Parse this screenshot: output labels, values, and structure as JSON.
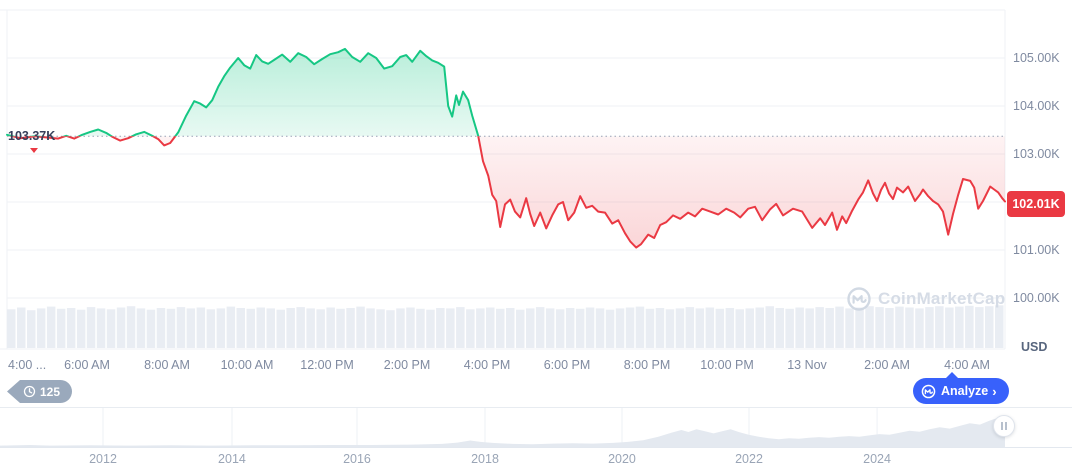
{
  "price_flags": {
    "baseline_label": "103.37K",
    "last_price_label": "102.01K"
  },
  "y_axis": {
    "unit": "USD",
    "ticks": [
      {
        "label": "105.00K",
        "v": 105
      },
      {
        "label": "104.00K",
        "v": 104
      },
      {
        "label": "103.00K",
        "v": 103
      },
      {
        "label": "101.00K",
        "v": 101
      },
      {
        "label": "100.00K",
        "v": 100
      }
    ]
  },
  "x_axis": {
    "ticks": [
      {
        "label": "4:00 ...",
        "t": 0
      },
      {
        "label": "6:00 AM",
        "t": 2
      },
      {
        "label": "8:00 AM",
        "t": 4
      },
      {
        "label": "10:00 AM",
        "t": 6
      },
      {
        "label": "12:00 PM",
        "t": 8
      },
      {
        "label": "2:00 PM",
        "t": 10
      },
      {
        "label": "4:00 PM",
        "t": 12
      },
      {
        "label": "6:00 PM",
        "t": 14
      },
      {
        "label": "8:00 PM",
        "t": 16
      },
      {
        "label": "10:00 PM",
        "t": 18
      },
      {
        "label": "13 Nov",
        "t": 20
      },
      {
        "label": "2:00 AM",
        "t": 22
      },
      {
        "label": "4:00 AM",
        "t": 24
      }
    ]
  },
  "toolbar": {
    "history_count": "125",
    "analyze_label": "Analyze",
    "analyze_chevron": "›"
  },
  "watermark": {
    "text": "CoinMarketCap"
  },
  "navigator": {
    "years": [
      {
        "label": "2012",
        "f": 0.1025
      },
      {
        "label": "2014",
        "f": 0.2308
      },
      {
        "label": "2016",
        "f": 0.3552
      },
      {
        "label": "2018",
        "f": 0.4826
      },
      {
        "label": "2020",
        "f": 0.6189
      },
      {
        "label": "2022",
        "f": 0.7453
      },
      {
        "label": "2024",
        "f": 0.8727
      }
    ]
  },
  "colors": {
    "green": "#16C784",
    "red": "#EA3943",
    "blue": "#3861FB",
    "grid": "#EFF2F5",
    "baseline_dots": "#98A2B6",
    "volume": "#E9EDF3",
    "nav_area": "#E4E9F0",
    "nav_grid": "#EEF1F6",
    "watermark": "#CDD5E1"
  },
  "chart_data": [
    {
      "type": "line",
      "title": "BTC/USD intraday price (12–13 Nov)",
      "x_unit": "hours from 04:00 AM 12 Nov",
      "y_unit": "USD (thousands)",
      "baseline": 103.37,
      "last_price": 102.01,
      "ylim": [
        99.9,
        106.2
      ],
      "y_gridlines": [
        100,
        101,
        102,
        103,
        104,
        105,
        106
      ],
      "points": [
        [
          0,
          103.4
        ],
        [
          0.33,
          103.33
        ],
        [
          0.7,
          103.37
        ],
        [
          1.28,
          103.32
        ],
        [
          1.48,
          103.38
        ],
        [
          1.68,
          103.32
        ],
        [
          1.88,
          103.4
        ],
        [
          2.08,
          103.46
        ],
        [
          2.28,
          103.51
        ],
        [
          2.48,
          103.44
        ],
        [
          2.63,
          103.36
        ],
        [
          2.83,
          103.28
        ],
        [
          3.03,
          103.33
        ],
        [
          3.23,
          103.41
        ],
        [
          3.43,
          103.46
        ],
        [
          3.63,
          103.38
        ],
        [
          3.78,
          103.31
        ],
        [
          3.93,
          103.18
        ],
        [
          4.08,
          103.23
        ],
        [
          4.28,
          103.45
        ],
        [
          4.48,
          103.8
        ],
        [
          4.68,
          104.1
        ],
        [
          4.83,
          104.05
        ],
        [
          4.98,
          103.97
        ],
        [
          5.13,
          104.12
        ],
        [
          5.28,
          104.4
        ],
        [
          5.43,
          104.62
        ],
        [
          5.58,
          104.8
        ],
        [
          5.78,
          105.0
        ],
        [
          5.93,
          104.85
        ],
        [
          6.08,
          104.78
        ],
        [
          6.23,
          105.06
        ],
        [
          6.38,
          104.93
        ],
        [
          6.53,
          104.88
        ],
        [
          6.68,
          104.96
        ],
        [
          6.88,
          105.07
        ],
        [
          7.08,
          104.92
        ],
        [
          7.28,
          105.1
        ],
        [
          7.48,
          105.02
        ],
        [
          7.68,
          104.87
        ],
        [
          7.88,
          104.98
        ],
        [
          8.08,
          105.08
        ],
        [
          8.28,
          105.12
        ],
        [
          8.45,
          105.19
        ],
        [
          8.63,
          105.02
        ],
        [
          8.83,
          104.92
        ],
        [
          9.03,
          105.1
        ],
        [
          9.23,
          105.0
        ],
        [
          9.43,
          104.78
        ],
        [
          9.63,
          104.83
        ],
        [
          9.83,
          105.02
        ],
        [
          9.98,
          105.06
        ],
        [
          10.13,
          104.92
        ],
        [
          10.33,
          105.15
        ],
        [
          10.48,
          105.04
        ],
        [
          10.63,
          104.95
        ],
        [
          10.78,
          104.9
        ],
        [
          10.93,
          104.82
        ],
        [
          11.03,
          104.0
        ],
        [
          11.13,
          103.78
        ],
        [
          11.23,
          104.22
        ],
        [
          11.3,
          104.02
        ],
        [
          11.4,
          104.3
        ],
        [
          11.53,
          104.12
        ],
        [
          11.63,
          103.8
        ],
        [
          11.78,
          103.38
        ],
        [
          11.9,
          102.85
        ],
        [
          12.03,
          102.55
        ],
        [
          12.13,
          102.15
        ],
        [
          12.23,
          102.02
        ],
        [
          12.33,
          101.48
        ],
        [
          12.45,
          101.95
        ],
        [
          12.58,
          102.05
        ],
        [
          12.7,
          101.8
        ],
        [
          12.83,
          101.68
        ],
        [
          12.98,
          102.08
        ],
        [
          13.08,
          101.75
        ],
        [
          13.18,
          101.5
        ],
        [
          13.33,
          101.78
        ],
        [
          13.48,
          101.45
        ],
        [
          13.63,
          101.72
        ],
        [
          13.78,
          101.95
        ],
        [
          13.9,
          102.0
        ],
        [
          14.03,
          101.62
        ],
        [
          14.18,
          101.78
        ],
        [
          14.33,
          102.12
        ],
        [
          14.48,
          101.88
        ],
        [
          14.63,
          101.92
        ],
        [
          14.78,
          101.8
        ],
        [
          14.95,
          101.78
        ],
        [
          15.13,
          101.55
        ],
        [
          15.28,
          101.62
        ],
        [
          15.45,
          101.35
        ],
        [
          15.58,
          101.18
        ],
        [
          15.73,
          101.05
        ],
        [
          15.85,
          101.12
        ],
        [
          16.03,
          101.32
        ],
        [
          16.18,
          101.25
        ],
        [
          16.33,
          101.52
        ],
        [
          16.48,
          101.58
        ],
        [
          16.65,
          101.72
        ],
        [
          16.83,
          101.65
        ],
        [
          17.03,
          101.78
        ],
        [
          17.2,
          101.7
        ],
        [
          17.38,
          101.86
        ],
        [
          17.58,
          101.8
        ],
        [
          17.78,
          101.74
        ],
        [
          17.98,
          101.86
        ],
        [
          18.18,
          101.78
        ],
        [
          18.33,
          101.68
        ],
        [
          18.53,
          101.86
        ],
        [
          18.7,
          101.9
        ],
        [
          18.88,
          101.62
        ],
        [
          19.08,
          101.85
        ],
        [
          19.23,
          101.96
        ],
        [
          19.4,
          101.72
        ],
        [
          19.65,
          101.86
        ],
        [
          19.88,
          101.8
        ],
        [
          20.13,
          101.46
        ],
        [
          20.33,
          101.66
        ],
        [
          20.45,
          101.52
        ],
        [
          20.63,
          101.78
        ],
        [
          20.75,
          101.42
        ],
        [
          20.88,
          101.7
        ],
        [
          20.98,
          101.56
        ],
        [
          21.13,
          101.82
        ],
        [
          21.28,
          102.05
        ],
        [
          21.4,
          102.2
        ],
        [
          21.53,
          102.45
        ],
        [
          21.65,
          102.18
        ],
        [
          21.75,
          102.02
        ],
        [
          21.85,
          102.25
        ],
        [
          21.95,
          102.4
        ],
        [
          22.05,
          102.18
        ],
        [
          22.15,
          102.06
        ],
        [
          22.25,
          102.3
        ],
        [
          22.4,
          102.2
        ],
        [
          22.53,
          102.32
        ],
        [
          22.7,
          102.02
        ],
        [
          22.83,
          102.16
        ],
        [
          22.9,
          102.26
        ],
        [
          23.03,
          102.12
        ],
        [
          23.15,
          102.02
        ],
        [
          23.28,
          101.95
        ],
        [
          23.4,
          101.8
        ],
        [
          23.53,
          101.32
        ],
        [
          23.65,
          101.75
        ],
        [
          23.78,
          102.15
        ],
        [
          23.9,
          102.48
        ],
        [
          24.08,
          102.44
        ],
        [
          24.18,
          102.3
        ],
        [
          24.28,
          101.86
        ],
        [
          24.4,
          102.02
        ],
        [
          24.58,
          102.32
        ],
        [
          24.68,
          102.26
        ],
        [
          24.78,
          102.2
        ],
        [
          24.88,
          102.08
        ],
        [
          24.95,
          102.01
        ]
      ]
    },
    {
      "type": "bar",
      "title": "volume (relative heights)",
      "values": [
        0.88,
        0.92,
        0.86,
        0.9,
        0.94,
        0.89,
        0.91,
        0.87,
        0.93,
        0.9,
        0.88,
        0.92,
        0.95,
        0.9,
        0.87,
        0.91,
        0.89,
        0.93,
        0.9,
        0.92,
        0.88,
        0.9,
        0.94,
        0.91,
        0.89,
        0.92,
        0.9,
        0.87,
        0.91,
        0.93,
        0.9,
        0.88,
        0.92,
        0.89,
        0.91,
        0.94,
        0.9,
        0.88,
        0.86,
        0.9,
        0.92,
        0.89,
        0.87,
        0.91,
        0.9,
        0.93,
        0.88,
        0.9,
        0.92,
        0.89,
        0.91,
        0.87,
        0.9,
        0.93,
        0.9,
        0.88,
        0.91,
        0.89,
        0.92,
        0.9,
        0.87,
        0.9,
        0.92,
        0.94,
        0.89,
        0.91,
        0.88,
        0.9,
        0.93,
        0.9,
        0.92,
        0.89,
        0.91,
        0.88,
        0.9,
        0.92,
        0.95,
        0.91,
        0.89,
        0.92,
        0.9,
        0.93,
        0.91,
        0.94,
        0.9,
        0.92,
        0.95,
        0.93,
        0.91,
        0.94,
        0.92,
        0.9,
        0.93,
        0.95,
        0.92,
        0.94,
        0.96,
        0.93,
        0.95,
        0.97
      ]
    },
    {
      "type": "area",
      "title": "all-time history navigator (2010–2025)",
      "x_unit": "fraction of navigator width",
      "y_unit": "fraction of navigator height",
      "points": [
        [
          0,
          0.04
        ],
        [
          0.03,
          0.06
        ],
        [
          0.05,
          0.04
        ],
        [
          0.09,
          0.05
        ],
        [
          0.13,
          0.04
        ],
        [
          0.17,
          0.05
        ],
        [
          0.21,
          0.04
        ],
        [
          0.25,
          0.05
        ],
        [
          0.29,
          0.05
        ],
        [
          0.33,
          0.06
        ],
        [
          0.37,
          0.06
        ],
        [
          0.41,
          0.07
        ],
        [
          0.44,
          0.09
        ],
        [
          0.455,
          0.13
        ],
        [
          0.468,
          0.19
        ],
        [
          0.478,
          0.15
        ],
        [
          0.49,
          0.12
        ],
        [
          0.51,
          0.09
        ],
        [
          0.53,
          0.08
        ],
        [
          0.55,
          0.1
        ],
        [
          0.57,
          0.11
        ],
        [
          0.59,
          0.1
        ],
        [
          0.61,
          0.12
        ],
        [
          0.625,
          0.15
        ],
        [
          0.64,
          0.2
        ],
        [
          0.655,
          0.3
        ],
        [
          0.668,
          0.42
        ],
        [
          0.678,
          0.5
        ],
        [
          0.685,
          0.44
        ],
        [
          0.693,
          0.52
        ],
        [
          0.702,
          0.46
        ],
        [
          0.71,
          0.4
        ],
        [
          0.718,
          0.46
        ],
        [
          0.727,
          0.52
        ],
        [
          0.735,
          0.44
        ],
        [
          0.745,
          0.36
        ],
        [
          0.755,
          0.3
        ],
        [
          0.765,
          0.26
        ],
        [
          0.775,
          0.23
        ],
        [
          0.785,
          0.26
        ],
        [
          0.795,
          0.24
        ],
        [
          0.805,
          0.27
        ],
        [
          0.815,
          0.29
        ],
        [
          0.825,
          0.27
        ],
        [
          0.835,
          0.3
        ],
        [
          0.845,
          0.32
        ],
        [
          0.855,
          0.3
        ],
        [
          0.865,
          0.34
        ],
        [
          0.875,
          0.38
        ],
        [
          0.885,
          0.36
        ],
        [
          0.895,
          0.42
        ],
        [
          0.905,
          0.48
        ],
        [
          0.915,
          0.45
        ],
        [
          0.925,
          0.52
        ],
        [
          0.935,
          0.58
        ],
        [
          0.945,
          0.54
        ],
        [
          0.955,
          0.62
        ],
        [
          0.965,
          0.7
        ],
        [
          0.975,
          0.66
        ],
        [
          0.985,
          0.78
        ],
        [
          0.992,
          0.85
        ],
        [
          1,
          0.9
        ]
      ]
    }
  ]
}
